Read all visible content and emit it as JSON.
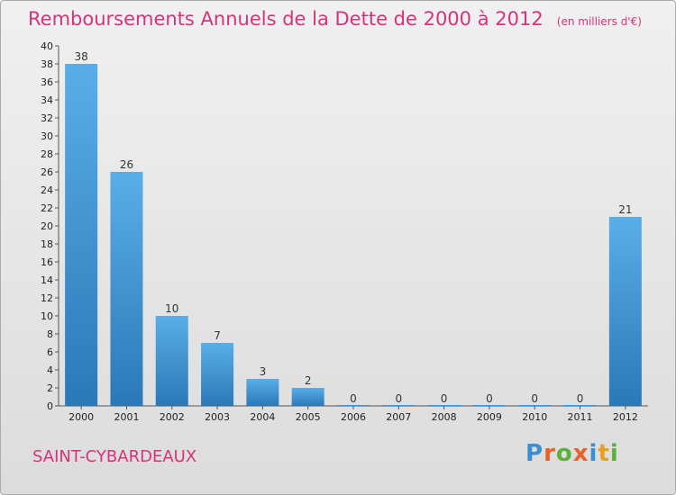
{
  "chart_data": {
    "type": "bar",
    "title": "Remboursements Annuels de la Dette de 2000 à 2012",
    "unit": "(en milliers d'€)",
    "categories": [
      "2000",
      "2001",
      "2002",
      "2003",
      "2004",
      "2005",
      "2006",
      "2007",
      "2008",
      "2009",
      "2010",
      "2011",
      "2012"
    ],
    "values": [
      38,
      26,
      10,
      7,
      3,
      2,
      0,
      0,
      0,
      0,
      0,
      0,
      21
    ],
    "ylim": [
      0,
      40
    ],
    "yticks": [
      0,
      2,
      4,
      6,
      8,
      10,
      12,
      14,
      16,
      18,
      20,
      22,
      24,
      26,
      28,
      30,
      32,
      34,
      36,
      38,
      40
    ],
    "grid": false,
    "colors": {
      "bar_top": "#5aaee8",
      "bar_bottom": "#2a78b8",
      "title": "#d6337a"
    }
  },
  "commune": "SAINT-CYBARDEAUX",
  "logo": {
    "text": "Proxiti",
    "letter_colors": [
      "#3a8fd0",
      "#e8622a",
      "#5cb03c",
      "#e8622a",
      "#3a8fd0",
      "#e8a020",
      "#5cb03c"
    ]
  }
}
